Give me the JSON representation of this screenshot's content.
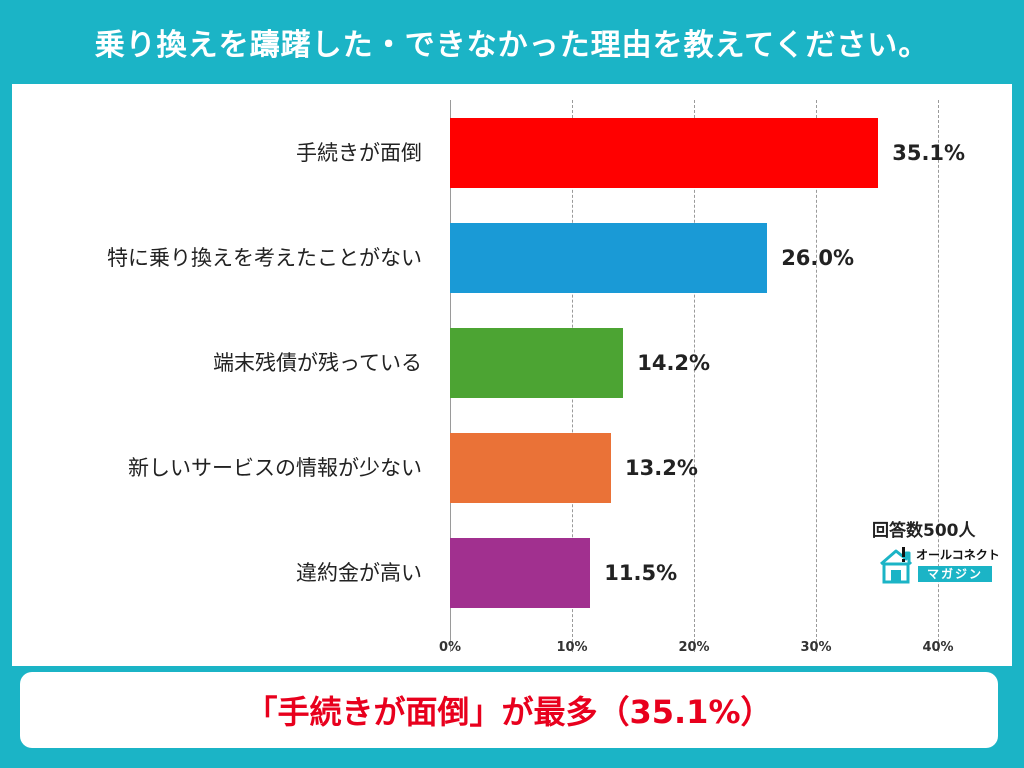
{
  "header": {
    "title": "乗り換えを躊躇した・できなかった理由を教えてください。"
  },
  "chart_data": {
    "type": "bar",
    "orientation": "horizontal",
    "categories": [
      "手続きが面倒",
      "特に乗り換えを考えたことがない",
      "端末残債が残っている",
      "新しいサービスの情報が少ない",
      "違約金が高い"
    ],
    "values": [
      35.1,
      26.0,
      14.2,
      13.2,
      11.5
    ],
    "value_labels": [
      "35.1%",
      "26.0%",
      "14.2%",
      "13.2%",
      "11.5%"
    ],
    "colors": [
      "#ff0000",
      "#1a9ad6",
      "#4ca433",
      "#ea7237",
      "#a1308f"
    ],
    "xlim": [
      0,
      40
    ],
    "xticks": [
      "0%",
      "10%",
      "20%",
      "30%",
      "40%"
    ],
    "grid": true
  },
  "note": {
    "respondents": "回答数500人"
  },
  "logo": {
    "top_text": "オールコネクト",
    "bottom_text": "マガジン",
    "color": "#1bb4c6"
  },
  "footer": {
    "summary": "「手続きが面倒」が最多（35.1%）"
  }
}
